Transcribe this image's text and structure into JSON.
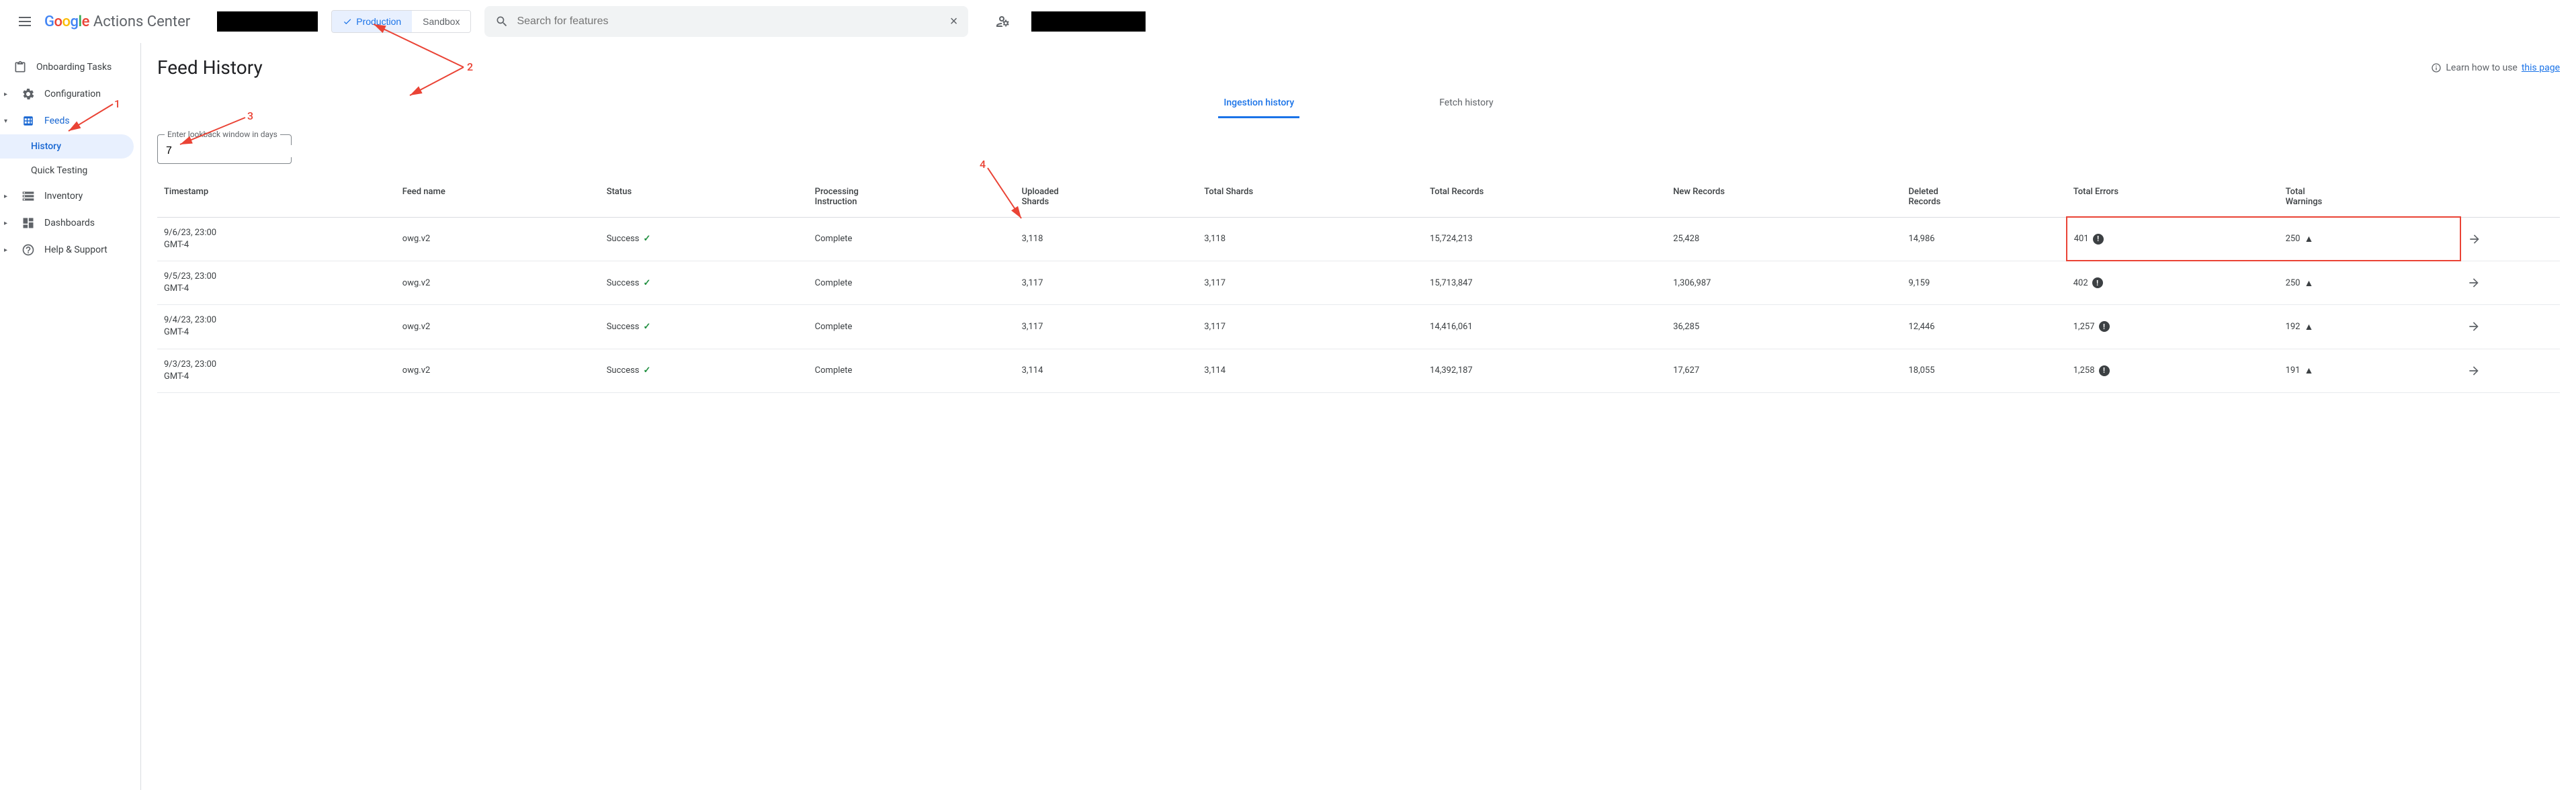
{
  "header": {
    "product_name": "Actions Center",
    "env_production": "Production",
    "env_sandbox": "Sandbox",
    "search_placeholder": "Search for features"
  },
  "sidebar": {
    "items": [
      {
        "label": "Onboarding Tasks",
        "icon": "clipboard"
      },
      {
        "label": "Configuration",
        "icon": "gear",
        "expandable": true
      },
      {
        "label": "Feeds",
        "icon": "grid",
        "expandable": true,
        "expanded": true
      },
      {
        "label": "History",
        "sub": true,
        "active": true
      },
      {
        "label": "Quick Testing",
        "sub": true
      },
      {
        "label": "Inventory",
        "icon": "storage",
        "expandable": true
      },
      {
        "label": "Dashboards",
        "icon": "dashboard",
        "expandable": true
      },
      {
        "label": "Help & Support",
        "icon": "help",
        "expandable": true
      }
    ]
  },
  "page": {
    "title": "Feed History",
    "help_text": "Learn how to use ",
    "help_link": "this page",
    "tabs": {
      "ingestion": "Ingestion history",
      "fetch": "Fetch history"
    },
    "lookback_label": "Enter lookback window in days",
    "lookback_value": "7"
  },
  "table": {
    "columns": [
      "Timestamp",
      "Feed name",
      "Status",
      "Processing Instruction",
      "Uploaded Shards",
      "Total Shards",
      "Total Records",
      "New Records",
      "Deleted Records",
      "Total Errors",
      "Total Warnings",
      ""
    ],
    "rows": [
      {
        "ts1": "9/6/23, 23:00",
        "ts2": "GMT-4",
        "feed": "owg.v2",
        "status": "Success",
        "proc": "Complete",
        "up": "3,118",
        "tot_sh": "3,118",
        "tot_rec": "15,724,213",
        "new": "25,428",
        "del": "14,986",
        "err": "401",
        "warn": "250",
        "highlight": true
      },
      {
        "ts1": "9/5/23, 23:00",
        "ts2": "GMT-4",
        "feed": "owg.v2",
        "status": "Success",
        "proc": "Complete",
        "up": "3,117",
        "tot_sh": "3,117",
        "tot_rec": "15,713,847",
        "new": "1,306,987",
        "del": "9,159",
        "err": "402",
        "warn": "250"
      },
      {
        "ts1": "9/4/23, 23:00",
        "ts2": "GMT-4",
        "feed": "owg.v2",
        "status": "Success",
        "proc": "Complete",
        "up": "3,117",
        "tot_sh": "3,117",
        "tot_rec": "14,416,061",
        "new": "36,285",
        "del": "12,446",
        "err": "1,257",
        "warn": "192"
      },
      {
        "ts1": "9/3/23, 23:00",
        "ts2": "GMT-4",
        "feed": "owg.v2",
        "status": "Success",
        "proc": "Complete",
        "up": "3,114",
        "tot_sh": "3,114",
        "tot_rec": "14,392,187",
        "new": "17,627",
        "del": "18,055",
        "err": "1,258",
        "warn": "191"
      }
    ]
  },
  "annotations": {
    "n1": "1",
    "n2": "2",
    "n3": "3",
    "n4": "4",
    "arrow_color": "#ea4335"
  }
}
